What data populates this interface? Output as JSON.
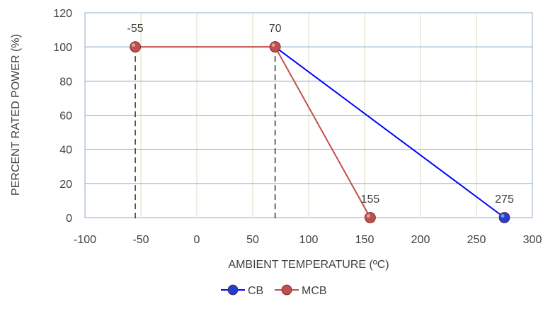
{
  "chart_data": {
    "type": "line",
    "title": "",
    "xlabel": "AMBIENT TEMPERATURE (ºC)",
    "ylabel": "PERCENT RATED POWER (%)",
    "xlim": [
      -100,
      300
    ],
    "ylim": [
      0,
      120
    ],
    "x_ticks": [
      -100,
      -50,
      0,
      50,
      100,
      150,
      200,
      250,
      300
    ],
    "y_ticks": [
      0,
      20,
      40,
      60,
      80,
      100,
      120
    ],
    "grid": true,
    "legend_position": "bottom",
    "series": [
      {
        "name": "CB",
        "color": "#0000ff",
        "marker_color": "#1f3fd6",
        "points": [
          [
            70,
            100
          ],
          [
            275,
            0
          ]
        ]
      },
      {
        "name": "MCB",
        "color": "#c0504d",
        "marker_color": "#c0504d",
        "points": [
          [
            -55,
            100
          ],
          [
            70,
            100
          ],
          [
            155,
            0
          ]
        ]
      }
    ],
    "annotations": [
      {
        "text": "-55",
        "x": -55,
        "y": 100
      },
      {
        "text": "70",
        "x": 70,
        "y": 100
      },
      {
        "text": "155",
        "x": 155,
        "y": 0
      },
      {
        "text": "275",
        "x": 275,
        "y": 0
      }
    ],
    "reference_lines": [
      {
        "x": -55
      },
      {
        "x": 70
      }
    ]
  }
}
